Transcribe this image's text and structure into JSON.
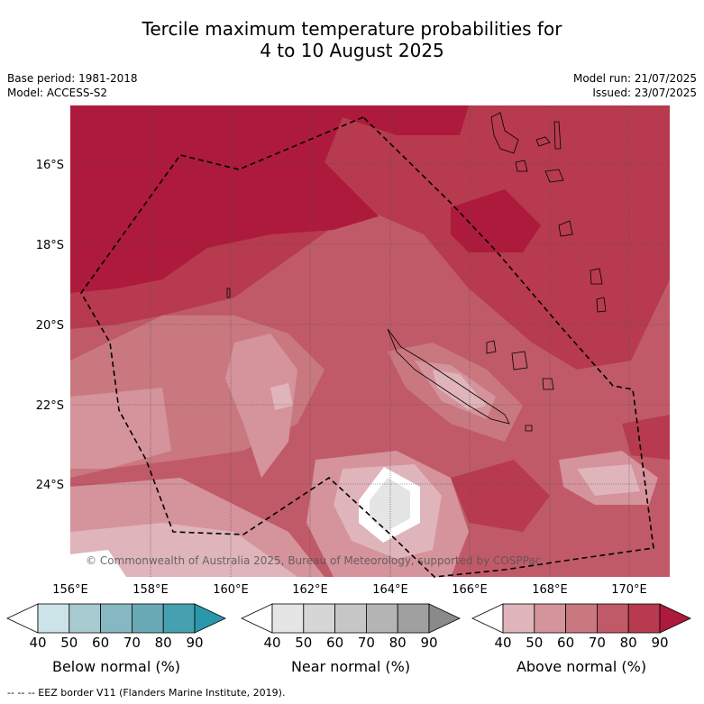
{
  "title_line1": "Tercile maximum temperature probabilities for",
  "title_line2": "4 to 10 August 2025",
  "base_period": "Base period: 1981-2018",
  "model": "Model: ACCESS-S2",
  "model_run": "Model run: 21/07/2025",
  "issued": "Issued: 23/07/2025",
  "copyright": "© Commonwealth of Australia 2025, Bureau of Meteorology, supported by COSPPac",
  "lon_ticks": [
    "156°E",
    "158°E",
    "160°E",
    "162°E",
    "164°E",
    "166°E",
    "168°E",
    "170°E"
  ],
  "lat_ticks": [
    "16°S",
    "18°S",
    "20°S",
    "22°S",
    "24°S"
  ],
  "colorbars": [
    {
      "label": "Below normal (%)",
      "ticks": [
        "40",
        "50",
        "60",
        "70",
        "80",
        "90"
      ],
      "colors": [
        "#ffffff",
        "#cce3e8",
        "#a8cbd1",
        "#87b8c2",
        "#6aaab6",
        "#45a0b0",
        "#2a98ab"
      ]
    },
    {
      "label": "Near normal (%)",
      "ticks": [
        "40",
        "50",
        "60",
        "70",
        "80",
        "90"
      ],
      "colors": [
        "#ffffff",
        "#e5e5e5",
        "#d6d6d6",
        "#c6c6c6",
        "#b4b4b4",
        "#a0a0a0",
        "#8a8a8a"
      ]
    },
    {
      "label": "Above normal (%)",
      "ticks": [
        "40",
        "50",
        "60",
        "70",
        "80",
        "90"
      ],
      "colors": [
        "#ffffff",
        "#e0b4bb",
        "#d5939c",
        "#c97880",
        "#c15a68",
        "#b73a4f",
        "#ad1a3b"
      ]
    }
  ],
  "footer": "-- -- -- EEZ border V11 (Flanders Marine Institute, 2019)."
}
